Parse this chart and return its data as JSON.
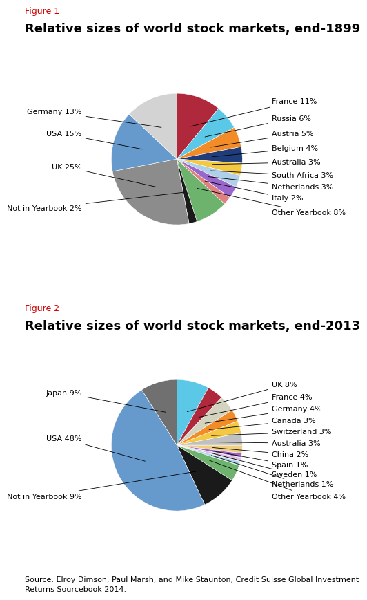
{
  "fig1_title_label": "Figure 1",
  "fig1_title": "Relative sizes of world stock markets, end-1899",
  "fig1_slices": [
    {
      "label": "France 11%",
      "value": 11,
      "color": "#b0283c"
    },
    {
      "label": "Russia 6%",
      "value": 6,
      "color": "#5bc8e8"
    },
    {
      "label": "Austria 5%",
      "value": 5,
      "color": "#f28c28"
    },
    {
      "label": "Belgium 4%",
      "value": 4,
      "color": "#1f3d7a"
    },
    {
      "label": "Australia 3%",
      "value": 3,
      "color": "#f5c842"
    },
    {
      "label": "South Africa 3%",
      "value": 3,
      "color": "#b0cfe8"
    },
    {
      "label": "Netherlands 3%",
      "value": 3,
      "color": "#9966cc"
    },
    {
      "label": "Italy 2%",
      "value": 2,
      "color": "#e08080"
    },
    {
      "label": "Other Yearbook 8%",
      "value": 8,
      "color": "#6db36d"
    },
    {
      "label": "Not in Yearbook 2%",
      "value": 2,
      "color": "#1a1a1a"
    },
    {
      "label": "UK 25%",
      "value": 25,
      "color": "#8c8c8c"
    },
    {
      "label": "USA 15%",
      "value": 15,
      "color": "#6699cc"
    },
    {
      "label": "Germany 13%",
      "value": 13,
      "color": "#d3d3d3"
    }
  ],
  "fig2_title_label": "Figure 2",
  "fig2_title": "Relative sizes of world stock markets, end-2013",
  "fig2_slices": [
    {
      "label": "UK 8%",
      "value": 8,
      "color": "#5bc8e8"
    },
    {
      "label": "France 4%",
      "value": 4,
      "color": "#b0283c"
    },
    {
      "label": "Germany 4%",
      "value": 4,
      "color": "#d3d3c0"
    },
    {
      "label": "Canada 3%",
      "value": 3,
      "color": "#f28c28"
    },
    {
      "label": "Switzerland 3%",
      "value": 3,
      "color": "#f5c842"
    },
    {
      "label": "Australia 3%",
      "value": 3,
      "color": "#c0c0c0"
    },
    {
      "label": "China 2%",
      "value": 2,
      "color": "#f0d080"
    },
    {
      "label": "Spain 1%",
      "value": 1,
      "color": "#9966cc"
    },
    {
      "label": "Sweden 1%",
      "value": 1,
      "color": "#e0c0e0"
    },
    {
      "label": "Netherlands 1%",
      "value": 1,
      "color": "#b0d8e8"
    },
    {
      "label": "Other Yearbook 4%",
      "value": 4,
      "color": "#6db36d"
    },
    {
      "label": "Not in Yearbook 9%",
      "value": 9,
      "color": "#1a1a1a"
    },
    {
      "label": "USA 48%",
      "value": 48,
      "color": "#6699cc"
    },
    {
      "label": "Japan 9%",
      "value": 9,
      "color": "#707070"
    }
  ],
  "source_text": "Source: Elroy Dimson, Paul Marsh, and Mike Staunton, Credit Suisse Global Investment\nReturns Sourcebook 2014.",
  "background_color": "#ffffff",
  "title_color": "#000000",
  "fig_label_color": "#cc0000",
  "annotation_fontsize": 8,
  "title_fontsize": 13,
  "fig_label_fontsize": 9
}
